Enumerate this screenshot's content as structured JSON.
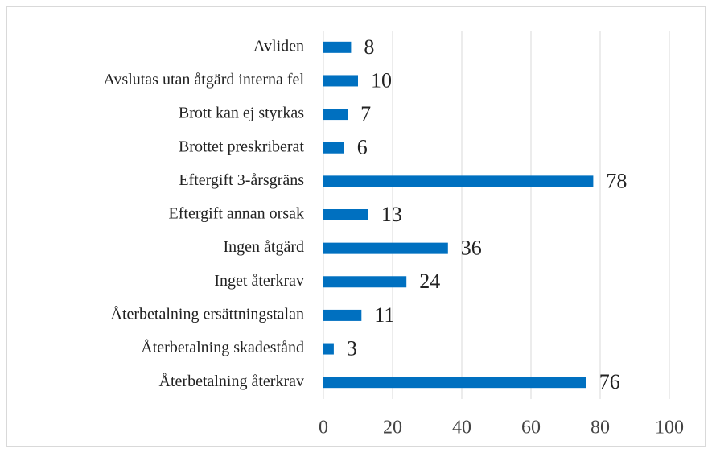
{
  "chart_data": {
    "type": "barh",
    "categories": [
      "Avliden",
      "Avslutas utan åtgärd interna fel",
      "Brott kan ej styrkas",
      "Brottet preskriberat",
      "Eftergift 3-årsgräns",
      "Eftergift annan orsak",
      "Ingen åtgärd",
      "Inget återkrav",
      "Återbetalning ersättningstalan",
      "Återbetalning skadestånd",
      "Återbetalning återkrav"
    ],
    "values": [
      8,
      10,
      7,
      6,
      78,
      13,
      36,
      24,
      11,
      3,
      76
    ],
    "color": "#0070c0",
    "xlim": [
      0,
      100
    ],
    "xticks": [
      0,
      20,
      40,
      60,
      80,
      100
    ],
    "grid": true
  }
}
